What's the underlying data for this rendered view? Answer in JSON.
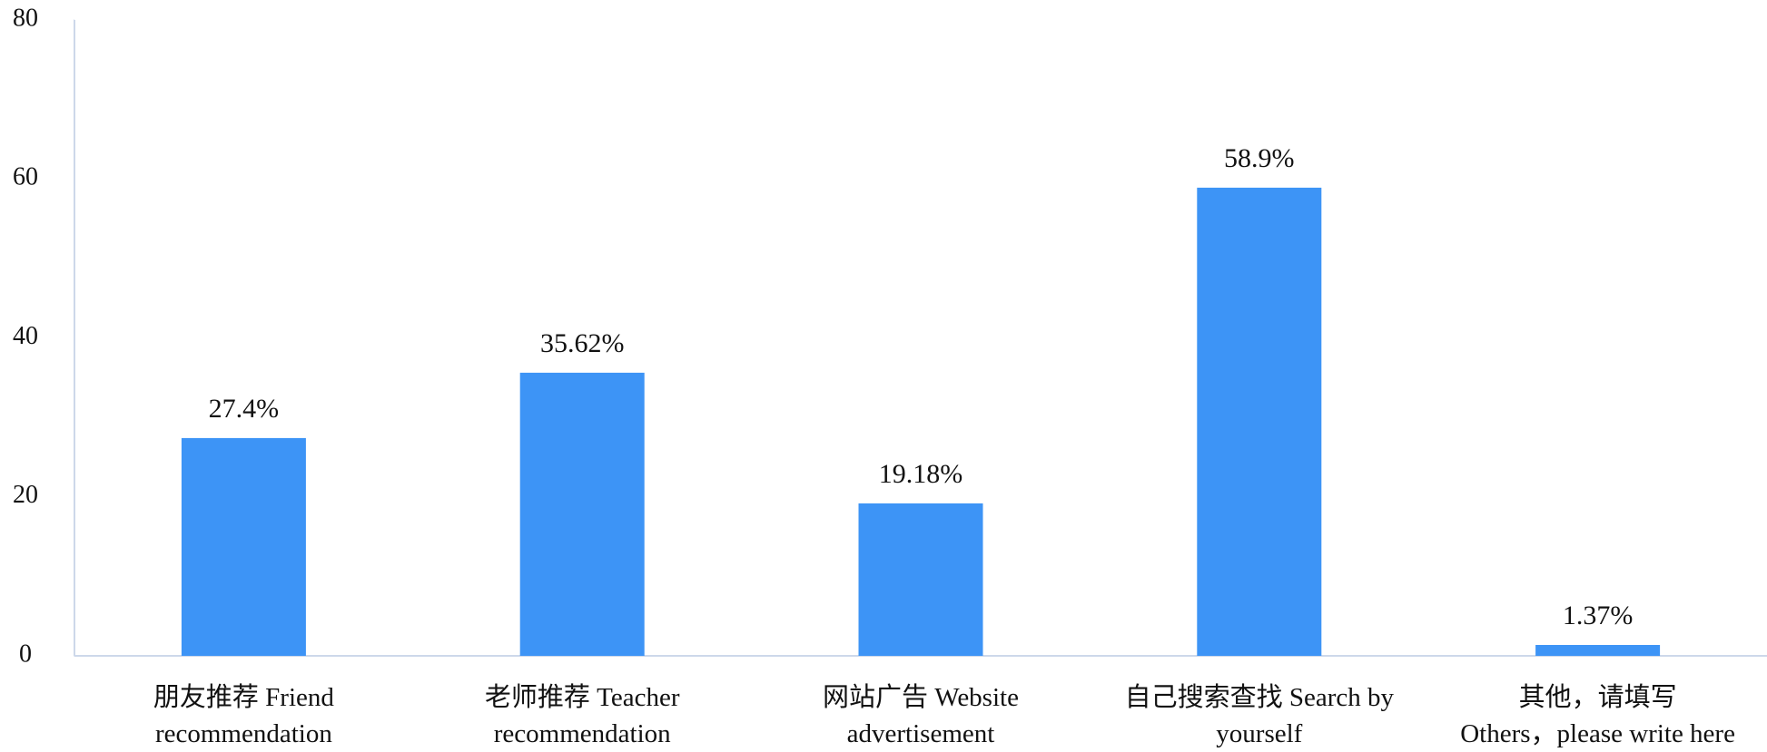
{
  "chart_data": {
    "type": "bar",
    "categories": [
      "朋友推荐 Friend\nrecommendation",
      "老师推荐 Teacher\nrecommendation",
      "网站广告 Website\nadvertisement",
      "自己搜索查找 Search by\nyourself",
      "其他，请填写\nOthers，please write here"
    ],
    "values": [
      27.4,
      35.62,
      19.18,
      58.9,
      1.37
    ],
    "value_labels": [
      "27.4%",
      "35.62%",
      "19.18%",
      "58.9%",
      "1.37%"
    ],
    "color": "#3d94f6",
    "ylim": [
      0,
      80
    ],
    "yticks": [
      0,
      20,
      40,
      60,
      80
    ],
    "grid": false
  }
}
